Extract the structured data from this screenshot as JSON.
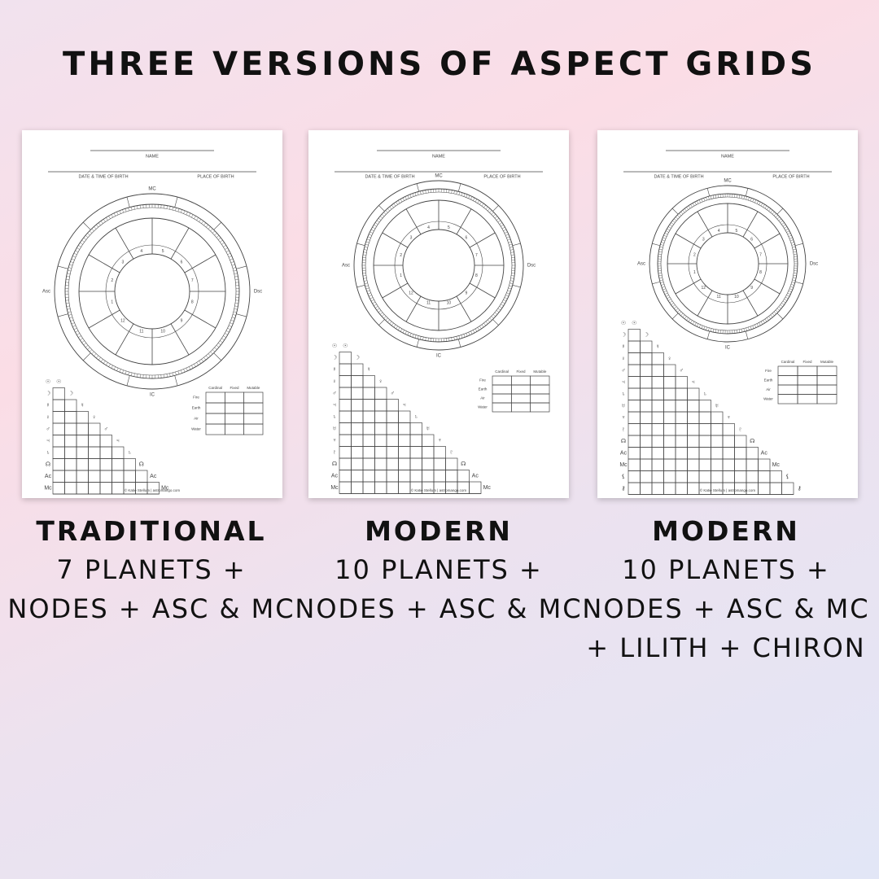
{
  "headline": "THREE VERSIONS OF ASPECT GRIDS",
  "form_labels": {
    "name": "NAME",
    "date_time": "DATE & TIME OF BIRTH",
    "place": "PLACE OF BIRTH",
    "mc": "MC",
    "asc": "Asc",
    "dsc": "Dsc",
    "ic": "IC",
    "cardinal": "Cardinal",
    "fixed": "Fixed",
    "mutable": "Mutable",
    "elements": [
      "Fire",
      "Earth",
      "Air",
      "Water"
    ],
    "footer": "© Katie Stellum | astromango.com"
  },
  "cards": [
    {
      "title": "TRADITIONAL",
      "description": "7 PLANETS + NODES + ASC & MC",
      "glyphs": [
        "☉",
        "☽",
        "☿",
        "♀",
        "♂",
        "♃",
        "♄",
        "☊",
        "Ac",
        "Mc"
      ]
    },
    {
      "title": "MODERN",
      "description": "10 PLANETS + NODES + ASC & MC",
      "glyphs": [
        "☉",
        "☽",
        "☿",
        "♀",
        "♂",
        "♃",
        "♄",
        "♅",
        "♆",
        "♇",
        "☊",
        "Ac",
        "Mc"
      ]
    },
    {
      "title": "MODERN",
      "description": "10 PLANETS + NODES + ASC & MC + LILITH + CHIRON",
      "glyphs": [
        "☉",
        "☽",
        "☿",
        "♀",
        "♂",
        "♃",
        "♄",
        "♅",
        "♆",
        "♇",
        "☊",
        "Ac",
        "Mc",
        "⚸",
        "⚷"
      ]
    }
  ],
  "colors": {
    "ink": "#111111",
    "line": "#444444",
    "card": "#ffffff"
  }
}
